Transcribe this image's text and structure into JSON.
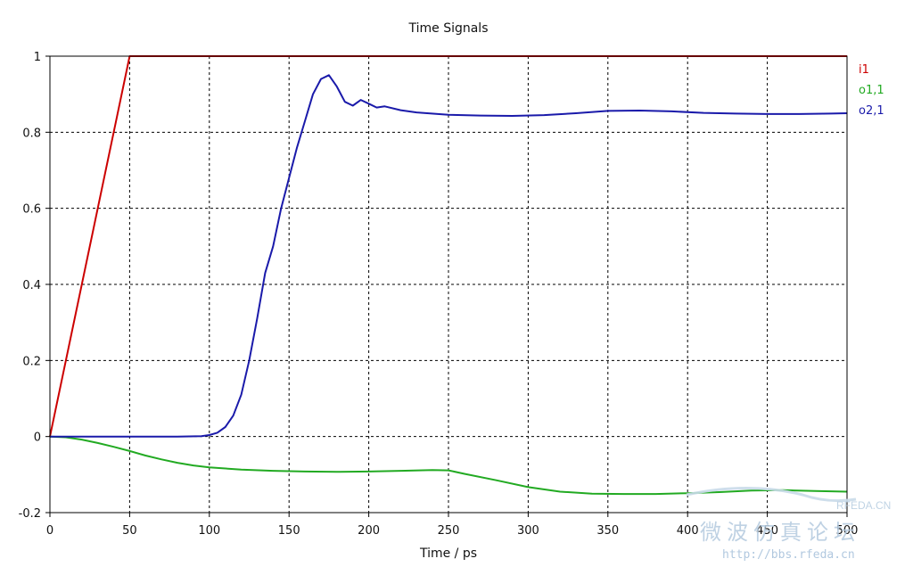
{
  "chart_data": {
    "type": "line",
    "title": "Time Signals",
    "xlabel": "Time / ps",
    "ylabel": "",
    "xlim": [
      0,
      500
    ],
    "ylim": [
      -0.2,
      1
    ],
    "xticks": [
      0,
      50,
      100,
      150,
      200,
      250,
      300,
      350,
      400,
      450,
      500
    ],
    "yticks": [
      -0.2,
      0,
      0.2,
      0.4,
      0.6,
      0.8,
      1
    ],
    "ytick_labels": [
      "-0.2",
      "0",
      "0.2",
      "0.4",
      "0.6",
      "0.8",
      "1"
    ],
    "grid": true,
    "legend_position": "right",
    "series": [
      {
        "name": "i1",
        "color": "#cc0000",
        "x": [
          0,
          50,
          500
        ],
        "y": [
          0,
          1,
          1
        ]
      },
      {
        "name": "o1,1",
        "color": "#22aa22",
        "x": [
          0,
          10,
          20,
          30,
          40,
          50,
          60,
          70,
          80,
          90,
          100,
          120,
          140,
          160,
          180,
          200,
          220,
          240,
          250,
          260,
          280,
          300,
          320,
          340,
          360,
          380,
          400,
          420,
          440,
          460,
          480,
          500
        ],
        "y": [
          0,
          -0.002,
          -0.008,
          -0.017,
          -0.027,
          -0.038,
          -0.05,
          -0.06,
          -0.069,
          -0.076,
          -0.081,
          -0.087,
          -0.09,
          -0.092,
          -0.093,
          -0.092,
          -0.09,
          -0.088,
          -0.089,
          -0.098,
          -0.115,
          -0.133,
          -0.145,
          -0.15,
          -0.151,
          -0.151,
          -0.149,
          -0.146,
          -0.142,
          -0.141,
          -0.143,
          -0.145
        ]
      },
      {
        "name": "o2,1",
        "color": "#1a1aaa",
        "x": [
          0,
          50,
          80,
          95,
          100,
          105,
          110,
          115,
          120,
          125,
          130,
          135,
          140,
          145,
          150,
          155,
          160,
          165,
          170,
          175,
          180,
          185,
          190,
          195,
          200,
          205,
          210,
          220,
          230,
          250,
          270,
          290,
          310,
          330,
          350,
          370,
          390,
          410,
          430,
          450,
          470,
          490,
          500
        ],
        "y": [
          0,
          0,
          0,
          0.001,
          0.004,
          0.01,
          0.025,
          0.055,
          0.11,
          0.2,
          0.31,
          0.43,
          0.5,
          0.6,
          0.68,
          0.76,
          0.83,
          0.9,
          0.94,
          0.95,
          0.92,
          0.88,
          0.87,
          0.885,
          0.875,
          0.865,
          0.868,
          0.858,
          0.852,
          0.846,
          0.844,
          0.843,
          0.845,
          0.85,
          0.856,
          0.857,
          0.855,
          0.851,
          0.849,
          0.848,
          0.848,
          0.849,
          0.85
        ]
      }
    ]
  },
  "watermark": {
    "logo": "RFEDA.CN",
    "chinese": "微波仿真论坛",
    "url": "http://bbs.rfeda.cn"
  }
}
